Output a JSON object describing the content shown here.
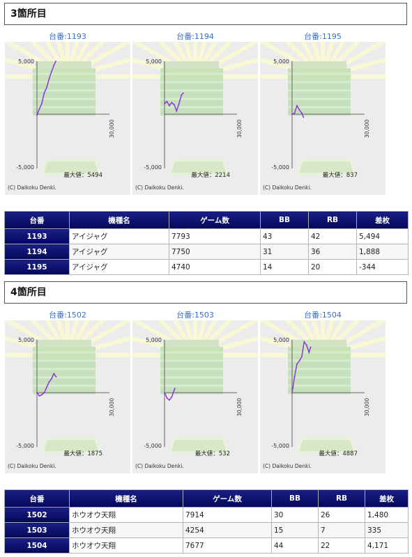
{
  "sections": [
    {
      "title": "3箇所目",
      "charts": [
        {
          "label": "台番:1193",
          "max_label": "最大値：5494",
          "copyright": "(C) Daikoku Denki.",
          "y_top": "5,000",
          "y_bottom": "-5,000",
          "x_label": "30,000"
        },
        {
          "label": "台番:1194",
          "max_label": "最大値：2214",
          "copyright": "(C) Daikoku Denki.",
          "y_top": "5,000",
          "y_bottom": "-5,000",
          "x_label": "30,000"
        },
        {
          "label": "台番:1195",
          "max_label": "最大値：837",
          "copyright": "(C) Daikoku Denki.",
          "y_top": "5,000",
          "y_bottom": "-5,000",
          "x_label": "30,000"
        }
      ],
      "table": {
        "headers": [
          "台番",
          "機種名",
          "ゲーム数",
          "BB",
          "RB",
          "差枚"
        ],
        "rows": [
          {
            "no": "1193",
            "model": "アイジャグ",
            "games": "7793",
            "bb": "43",
            "rb": "42",
            "diff": "5,494"
          },
          {
            "no": "1194",
            "model": "アイジャグ",
            "games": "7750",
            "bb": "31",
            "rb": "36",
            "diff": "1,888"
          },
          {
            "no": "1195",
            "model": "アイジャグ",
            "games": "4740",
            "bb": "14",
            "rb": "20",
            "diff": "-344"
          }
        ]
      }
    },
    {
      "title": "4箇所目",
      "charts": [
        {
          "label": "台番:1502",
          "max_label": "最大値：1875",
          "copyright": "(C) Daikoku Denki.",
          "y_top": "5,000",
          "y_bottom": "-5,000",
          "x_label": "30,000"
        },
        {
          "label": "台番:1503",
          "max_label": "最大値：532",
          "copyright": "(C) Daikoku Denki.",
          "y_top": "5,000",
          "y_bottom": "-5,000",
          "x_label": "30,000"
        },
        {
          "label": "台番:1504",
          "max_label": "最大値：4887",
          "copyright": "(C) Daikoku Denki.",
          "y_top": "5,000",
          "y_bottom": "-5,000",
          "x_label": "30,000"
        }
      ],
      "table": {
        "headers": [
          "台番",
          "機種名",
          "ゲーム数",
          "BB",
          "RB",
          "差枚"
        ],
        "rows": [
          {
            "no": "1502",
            "model": "ホウオウ天翔",
            "games": "7914",
            "bb": "30",
            "rb": "26",
            "diff": "1,480"
          },
          {
            "no": "1503",
            "model": "ホウオウ天翔",
            "games": "4254",
            "bb": "15",
            "rb": "7",
            "diff": "335"
          },
          {
            "no": "1504",
            "model": "ホウオウ天翔",
            "games": "7677",
            "bb": "44",
            "rb": "22",
            "diff": "4,171"
          }
        ]
      }
    }
  ],
  "chart_data": [
    {
      "type": "line",
      "title": "台番:1193",
      "xlim": [
        0,
        30000
      ],
      "ylim": [
        -5000,
        5000
      ],
      "x": [
        0,
        1000,
        2000,
        3000,
        4000,
        5000,
        6000,
        7000,
        7793
      ],
      "y": [
        -100,
        500,
        1000,
        2000,
        2500,
        3300,
        4000,
        4600,
        5000
      ],
      "line_color": "#8a2be2"
    },
    {
      "type": "line",
      "title": "台番:1194",
      "xlim": [
        0,
        30000
      ],
      "ylim": [
        -5000,
        5000
      ],
      "x": [
        0,
        1000,
        2000,
        3000,
        4000,
        5000,
        6000,
        7000,
        7750
      ],
      "y": [
        1000,
        1200,
        800,
        1100,
        900,
        300,
        1000,
        1800,
        2000
      ],
      "line_color": "#8a2be2"
    },
    {
      "type": "line",
      "title": "台番:1195",
      "xlim": [
        0,
        30000
      ],
      "ylim": [
        -5000,
        5000
      ],
      "x": [
        0,
        1000,
        2000,
        3000,
        4000,
        4740
      ],
      "y": [
        0,
        100,
        800,
        400,
        100,
        -300
      ],
      "line_color": "#8a2be2"
    },
    {
      "type": "line",
      "title": "台番:1502",
      "xlim": [
        0,
        30000
      ],
      "ylim": [
        -5000,
        5000
      ],
      "x": [
        0,
        1000,
        2000,
        3000,
        4000,
        5000,
        6000,
        7000,
        7914
      ],
      "y": [
        0,
        -300,
        -200,
        0,
        500,
        1000,
        1300,
        1800,
        1500
      ],
      "line_color": "#8a2be2"
    },
    {
      "type": "line",
      "title": "台番:1503",
      "xlim": [
        0,
        30000
      ],
      "ylim": [
        -5000,
        5000
      ],
      "x": [
        0,
        1000,
        2000,
        3000,
        4254
      ],
      "y": [
        0,
        -500,
        -700,
        -400,
        400
      ],
      "line_color": "#8a2be2"
    },
    {
      "type": "line",
      "title": "台番:1504",
      "xlim": [
        0,
        30000
      ],
      "ylim": [
        -5000,
        5000
      ],
      "x": [
        0,
        1000,
        2000,
        3000,
        4000,
        5000,
        6000,
        7000,
        7677
      ],
      "y": [
        0,
        1500,
        2700,
        3000,
        3400,
        4800,
        4500,
        3800,
        4300
      ],
      "line_color": "#8a2be2"
    }
  ]
}
